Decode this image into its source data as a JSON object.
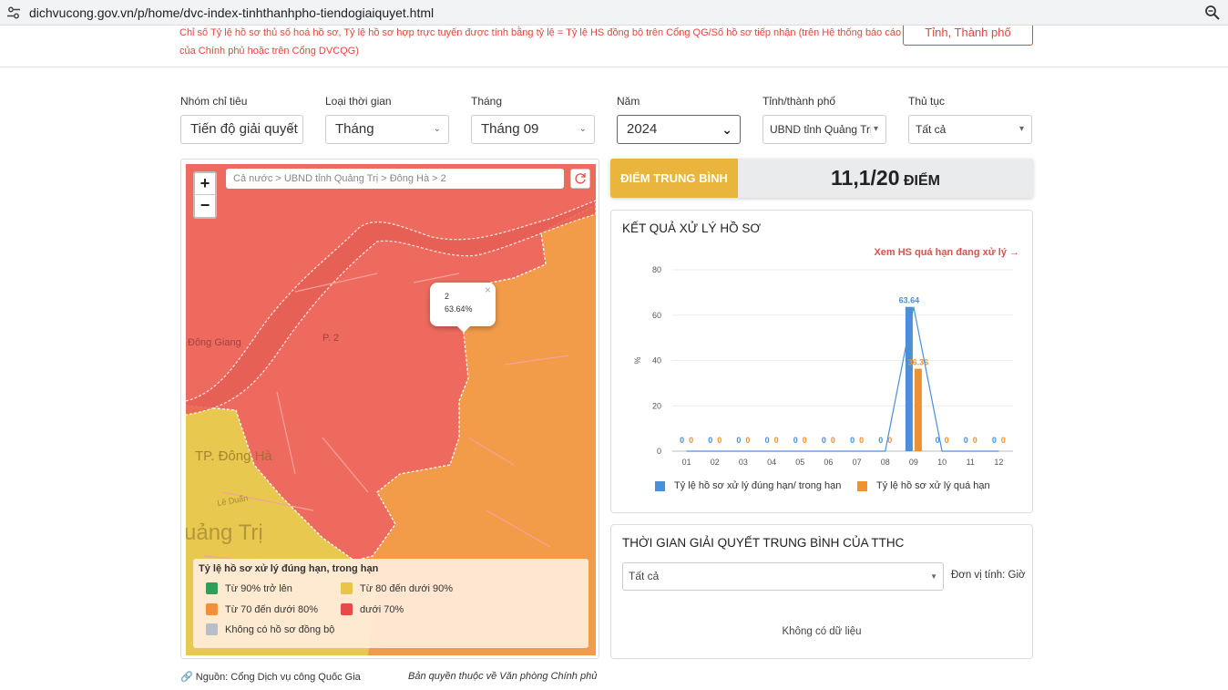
{
  "browser": {
    "url": "dichvucong.gov.vn/p/home/dvc-index-tinhthanhpho-tiendogiaiquyet.html"
  },
  "notice": {
    "line1": "Chỉ số Tỷ lệ hồ sơ thủ số hoá hồ sơ, Tỷ lệ hồ sơ hợp trực tuyến được tính bằng tỷ lệ = Tỷ lệ HS đồng bộ trên Cổng QG/Số hồ sơ tiếp nhận (trên Hệ thống báo cáo",
    "line2": "của Chính phủ hoặc trên Cổng DVCQG)",
    "button": "Tỉnh, Thành phố"
  },
  "filters": [
    {
      "label": "Nhóm chỉ tiêu",
      "value": "Tiến độ giải quyết"
    },
    {
      "label": "Loại thời gian",
      "value": "Tháng"
    },
    {
      "label": "Tháng",
      "value": "Tháng 09"
    },
    {
      "label": "Năm",
      "value": "2024"
    },
    {
      "label": "Tỉnh/thành phố",
      "value": "UBND tỉnh Quảng Trị"
    },
    {
      "label": "Thủ tục",
      "value": "Tất cả"
    }
  ],
  "map": {
    "breadcrumb": "Cả nước > UBND tỉnh Quảng Trị > Đông Hà > 2",
    "zoom_in": "+",
    "zoom_out": "−",
    "popup": {
      "name": "2",
      "value": "63.64%",
      "close": "×"
    },
    "place_labels": {
      "dong_giang": "Đông Giang",
      "p2": "P. 2",
      "tp_dong_ha": "TP. Đông Hà",
      "quang_tri": "uảng Trị",
      "le_duan": "Lê Duẩn"
    },
    "legend": {
      "title": "Tỷ lệ hồ sơ xử lý đúng hạn, trong hạn",
      "items": [
        {
          "label": "Từ 90% trở lên",
          "color": "#2e9e5b"
        },
        {
          "label": "Từ 80 đến dưới 90%",
          "color": "#e8c547"
        },
        {
          "label": "Từ 70 đến dưới 80%",
          "color": "#f0913a"
        },
        {
          "label": "dưới 70%",
          "color": "#e84a4a"
        },
        {
          "label": "Không có hồ sơ đồng bộ",
          "color": "#b7bec7"
        }
      ]
    },
    "colors": {
      "red_area": "#ee6a5e",
      "orange_area": "#f29b49",
      "yellow_area": "#e9c84f"
    }
  },
  "score": {
    "label": "ĐIỂM TRUNG BÌNH",
    "value": "11,1/20",
    "unit": "ĐIỂM"
  },
  "chart_panel": {
    "title": "KẾT QUẢ XỬ LÝ HỒ SƠ",
    "link": "Xem HS quá hạn đang xử lý →"
  },
  "chart_data": {
    "type": "bar",
    "ylabel": "%",
    "ylim": [
      0,
      80
    ],
    "yticks": [
      0,
      20,
      40,
      60,
      80
    ],
    "categories": [
      "01",
      "02",
      "03",
      "04",
      "05",
      "06",
      "07",
      "08",
      "09",
      "10",
      "11",
      "12"
    ],
    "series": [
      {
        "name": "Tỷ lệ hồ sơ xử lý đúng hạn/ trong hạn",
        "color": "#4a90d9",
        "values": [
          0,
          0,
          0,
          0,
          0,
          0,
          0,
          0,
          63.64,
          0,
          0,
          0
        ]
      },
      {
        "name": "Tỷ lệ hồ sơ xử lý quá hạn",
        "color": "#f0912f",
        "values": [
          0,
          0,
          0,
          0,
          0,
          0,
          0,
          0,
          36.36,
          0,
          0,
          0
        ]
      }
    ],
    "line_series": "Tỷ lệ hồ sơ xử lý đúng hạn/ trong hạn"
  },
  "time_panel": {
    "title": "THỜI GIAN GIẢI QUYẾT TRUNG BÌNH CỦA TTHC",
    "select_value": "Tất cả",
    "unit_label": "Đơn vị tính: Giờ",
    "empty": "Không có dữ liệu"
  },
  "footer": {
    "source": "Nguồn: Cổng Dịch vụ công Quốc Gia",
    "copyright": "Bản quyền thuộc về Văn phòng Chính phủ"
  }
}
